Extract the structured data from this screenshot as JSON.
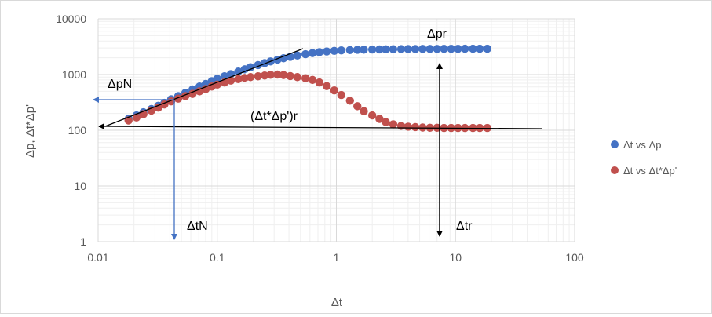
{
  "chart_data": {
    "type": "scatter",
    "x_scale": "log",
    "y_scale": "log",
    "xlim": [
      0.01,
      100
    ],
    "ylim": [
      1,
      10000
    ],
    "xticks": [
      "0.01",
      "0.1",
      "1",
      "10",
      "100"
    ],
    "yticks": [
      "1",
      "10",
      "100",
      "1000",
      "10000"
    ],
    "xlabel": "Δt",
    "ylabel": "Δp, Δt*Δp'",
    "grid": true,
    "legend_position": "right",
    "series": [
      {
        "name": "Δt vs Δp",
        "color": "#4472c4",
        "x": [
          0.018,
          0.021,
          0.024,
          0.028,
          0.032,
          0.036,
          0.041,
          0.047,
          0.054,
          0.062,
          0.071,
          0.08,
          0.09,
          0.1,
          0.115,
          0.13,
          0.15,
          0.17,
          0.19,
          0.22,
          0.25,
          0.28,
          0.32,
          0.36,
          0.41,
          0.47,
          0.55,
          0.63,
          0.72,
          0.83,
          0.96,
          1.1,
          1.3,
          1.5,
          1.7,
          2.0,
          2.3,
          2.6,
          3.0,
          3.5,
          4.0,
          4.6,
          5.3,
          6.1,
          7.0,
          8.0,
          9.2,
          10.5,
          12.0,
          14.0,
          16.0,
          18.5
        ],
        "y": [
          160,
          185,
          210,
          240,
          275,
          310,
          360,
          410,
          470,
          540,
          610,
          680,
          760,
          840,
          930,
          1020,
          1130,
          1240,
          1350,
          1480,
          1600,
          1720,
          1840,
          1960,
          2080,
          2200,
          2320,
          2430,
          2520,
          2600,
          2660,
          2710,
          2750,
          2780,
          2800,
          2820,
          2830,
          2840,
          2850,
          2860,
          2870,
          2875,
          2880,
          2885,
          2890,
          2895,
          2900,
          2900,
          2905,
          2905,
          2910,
          2910
        ]
      },
      {
        "name": "Δt vs Δt*Δp'",
        "color": "#c0504d",
        "x": [
          0.018,
          0.021,
          0.024,
          0.028,
          0.032,
          0.036,
          0.041,
          0.047,
          0.054,
          0.062,
          0.071,
          0.08,
          0.09,
          0.1,
          0.115,
          0.13,
          0.15,
          0.17,
          0.19,
          0.22,
          0.25,
          0.28,
          0.32,
          0.36,
          0.41,
          0.47,
          0.55,
          0.63,
          0.72,
          0.83,
          0.96,
          1.1,
          1.3,
          1.5,
          1.7,
          2.0,
          2.3,
          2.6,
          3.0,
          3.5,
          4.0,
          4.6,
          5.3,
          6.1,
          7.0,
          8.0,
          9.2,
          10.5,
          12.0,
          14.0,
          16.0,
          18.5
        ],
        "y": [
          150,
          170,
          195,
          225,
          255,
          290,
          330,
          370,
          410,
          450,
          500,
          550,
          610,
          660,
          720,
          780,
          830,
          870,
          900,
          930,
          960,
          990,
          1000,
          980,
          940,
          900,
          860,
          800,
          720,
          620,
          520,
          430,
          340,
          270,
          220,
          185,
          160,
          140,
          128,
          120,
          116,
          114,
          112,
          111,
          111,
          110,
          110,
          110,
          110,
          110,
          110,
          110
        ]
      }
    ],
    "annotations": {
      "delta_pr": "Δpr",
      "delta_pn": "ΔpN",
      "delta_tn": "ΔtN",
      "delta_tr": "Δtr",
      "radial": "(Δt*Δp')r"
    }
  }
}
